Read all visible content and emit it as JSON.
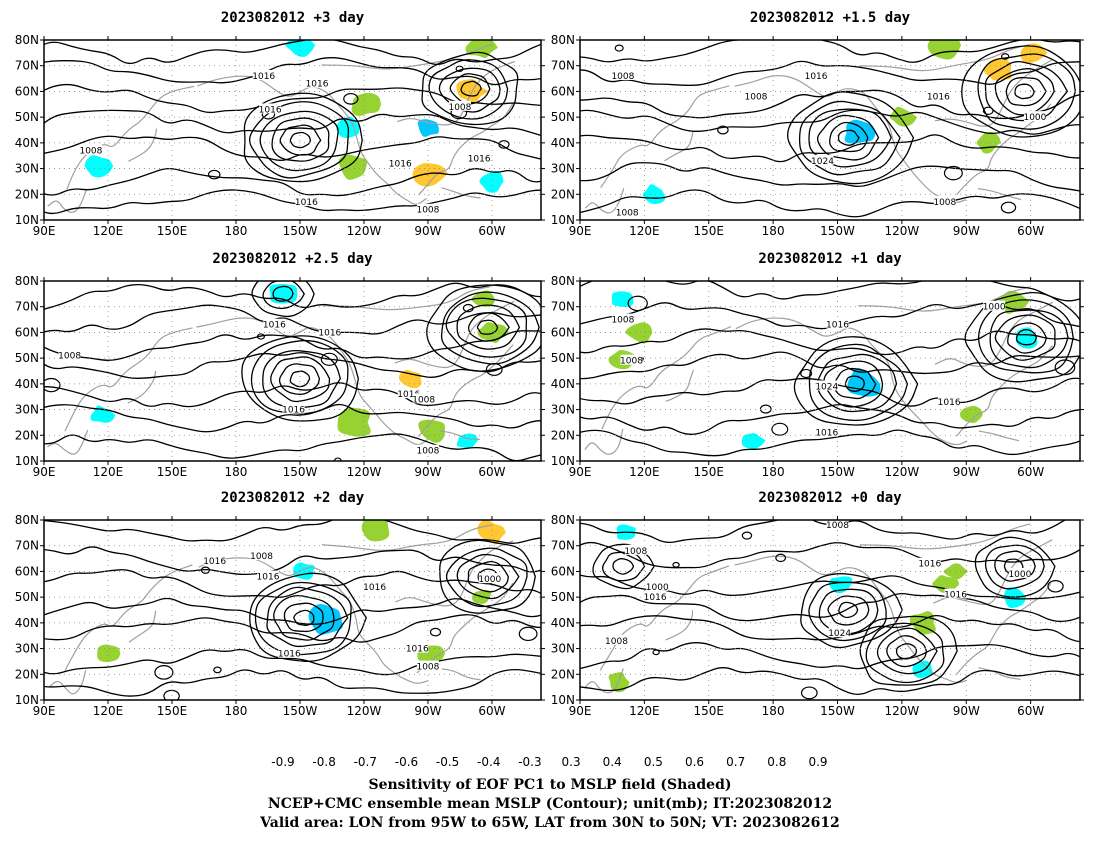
{
  "panels": [
    {
      "title": "2023082012  +3 day",
      "contour_labels": [
        [
          "1016",
          -167,
          66
        ],
        [
          "1016",
          -142,
          63
        ],
        [
          "1016",
          -164,
          53
        ],
        [
          "1016",
          -66,
          34
        ],
        [
          "1016",
          -147,
          17
        ],
        [
          "1016",
          -103,
          32
        ],
        [
          "1008",
          -75,
          54
        ],
        [
          "1008",
          112,
          37
        ],
        [
          "1008",
          -90,
          14
        ]
      ],
      "highs": [
        [
          -150,
          41,
          6
        ]
      ],
      "lows": [
        [
          -70,
          61,
          5
        ]
      ],
      "shade": [
        [
          -150,
          78,
          0.5,
          -0.4
        ],
        [
          -120,
          55,
          0.6,
          0.4
        ],
        [
          -125,
          30,
          0.7,
          0.4
        ],
        [
          -90,
          28,
          0.7,
          0.5
        ],
        [
          -70,
          60,
          0.6,
          0.6
        ],
        [
          -60,
          25,
          0.5,
          -0.4
        ],
        [
          -128,
          46,
          0.4,
          -0.4
        ],
        [
          115,
          31,
          0.5,
          -0.4
        ],
        [
          -65,
          77,
          0.5,
          0.4
        ],
        [
          -90,
          46,
          0.4,
          -0.5
        ]
      ]
    },
    {
      "title": "2023082012  +1.5 day",
      "contour_labels": [
        [
          "1016",
          -160,
          66
        ],
        [
          "1016",
          -103,
          58
        ],
        [
          "1008",
          110,
          66
        ],
        [
          "1008",
          172,
          58
        ],
        [
          "1024",
          -157,
          33
        ],
        [
          "1000",
          -58,
          50
        ],
        [
          "1008",
          -100,
          17
        ],
        [
          "1008",
          112,
          13
        ]
      ],
      "highs": [
        [
          -145,
          42,
          6
        ]
      ],
      "lows": [
        [
          -63,
          60,
          6
        ]
      ],
      "shade": [
        [
          -140,
          44,
          0.7,
          -0.5
        ],
        [
          -100,
          78,
          0.8,
          0.4
        ],
        [
          -75,
          68,
          0.6,
          0.5
        ],
        [
          -120,
          50,
          0.4,
          0.4
        ],
        [
          125,
          20,
          0.4,
          -0.4
        ],
        [
          -80,
          40,
          0.4,
          0.4
        ],
        [
          -60,
          75,
          0.5,
          0.6
        ]
      ]
    },
    {
      "title": "2023082012  +2.5 day",
      "contour_labels": [
        [
          "1016",
          -162,
          63
        ],
        [
          "1016",
          -136,
          60
        ],
        [
          "1016",
          -99,
          36
        ],
        [
          "1016",
          -153,
          30
        ],
        [
          "1008",
          102,
          51
        ],
        [
          "1008",
          -92,
          34
        ],
        [
          "1008",
          -90,
          14
        ]
      ],
      "highs": [
        [
          -150,
          42,
          6
        ]
      ],
      "lows": [
        [
          -62,
          62,
          6
        ],
        [
          -158,
          75,
          3
        ]
      ],
      "shade": [
        [
          -158,
          75,
          0.6,
          -0.4
        ],
        [
          -125,
          25,
          1.0,
          0.4
        ],
        [
          -88,
          22,
          0.6,
          0.4
        ],
        [
          -60,
          60,
          0.5,
          0.4
        ],
        [
          -63,
          73,
          0.4,
          0.4
        ],
        [
          117,
          28,
          0.3,
          -0.4
        ],
        [
          -98,
          42,
          0.3,
          0.5
        ],
        [
          -72,
          18,
          0.3,
          -0.4
        ]
      ]
    },
    {
      "title": "2023082012  +1 day",
      "contour_labels": [
        [
          "1016",
          -150,
          63
        ],
        [
          "1008",
          110,
          65
        ],
        [
          "1008",
          114,
          49
        ],
        [
          "1024",
          -155,
          39
        ],
        [
          "1016",
          -98,
          33
        ],
        [
          "1016",
          -155,
          21
        ],
        [
          "1000",
          -77,
          70
        ]
      ],
      "highs": [
        [
          -142,
          40,
          6
        ]
      ],
      "lows": [
        [
          -62,
          58,
          6
        ]
      ],
      "shade": [
        [
          -138,
          40,
          0.9,
          -0.5
        ],
        [
          -68,
          72,
          0.6,
          0.4
        ],
        [
          118,
          60,
          0.5,
          0.4
        ],
        [
          110,
          50,
          0.4,
          0.4
        ],
        [
          -62,
          58,
          0.4,
          -0.4
        ],
        [
          110,
          73,
          0.3,
          -0.4
        ],
        [
          -88,
          28,
          0.3,
          0.4
        ],
        [
          170,
          18,
          0.3,
          -0.4
        ]
      ]
    },
    {
      "title": "2023082012  +2 day",
      "contour_labels": [
        [
          "1016",
          -190,
          64
        ],
        [
          "1016",
          -165,
          58
        ],
        [
          "1016",
          -115,
          54
        ],
        [
          "1008",
          192,
          66
        ],
        [
          "1016",
          -95,
          30
        ],
        [
          "1016",
          -155,
          28
        ],
        [
          "1000",
          -61,
          57
        ],
        [
          "1008",
          -90,
          23
        ]
      ],
      "highs": [
        [
          -148,
          42,
          6
        ]
      ],
      "lows": [
        [
          -62,
          58,
          5
        ]
      ],
      "shade": [
        [
          -138,
          42,
          0.9,
          -0.5
        ],
        [
          -115,
          77,
          0.7,
          0.4
        ],
        [
          -60,
          75,
          0.6,
          0.6
        ],
        [
          -90,
          28,
          0.5,
          0.4
        ],
        [
          -148,
          60,
          0.3,
          -0.4
        ],
        [
          120,
          28,
          0.3,
          0.4
        ],
        [
          -65,
          50,
          0.3,
          0.4
        ]
      ]
    },
    {
      "title": "2023082012  +0 day",
      "contour_labels": [
        [
          "1008",
          -150,
          78
        ],
        [
          "1008",
          116,
          68
        ],
        [
          "1000",
          126,
          54
        ],
        [
          "1016",
          -107,
          63
        ],
        [
          "1016",
          -95,
          51
        ],
        [
          "1016",
          125,
          50
        ],
        [
          "1024",
          -149,
          36
        ],
        [
          "1008",
          107,
          33
        ],
        [
          "1000",
          -65,
          59
        ]
      ],
      "highs": [
        [
          -145,
          45,
          5
        ]
      ],
      "lows": [
        [
          -118,
          29,
          5
        ],
        [
          -68,
          62,
          4
        ],
        [
          110,
          62,
          3
        ]
      ],
      "shade": [
        [
          -110,
          40,
          0.5,
          0.4
        ],
        [
          -100,
          55,
          0.4,
          0.4
        ],
        [
          -68,
          50,
          0.4,
          -0.4
        ],
        [
          112,
          75,
          0.3,
          -0.4
        ],
        [
          -148,
          55,
          0.3,
          -0.4
        ],
        [
          -110,
          22,
          0.3,
          -0.4
        ],
        [
          108,
          17,
          0.3,
          0.4
        ],
        [
          -95,
          60,
          0.3,
          0.4
        ]
      ]
    }
  ],
  "axes": {
    "lon_ticks": [
      "90E",
      "120E",
      "150E",
      "180",
      "150W",
      "120W",
      "90W",
      "60W"
    ],
    "lon_values": [
      90,
      120,
      150,
      180,
      210,
      240,
      270,
      300
    ],
    "lat_ticks": [
      "10N",
      "20N",
      "30N",
      "40N",
      "50N",
      "60N",
      "70N",
      "80N"
    ],
    "lat_values": [
      10,
      20,
      30,
      40,
      50,
      60,
      70,
      80
    ],
    "lon_range": [
      90,
      323
    ],
    "lat_range": [
      10,
      80
    ]
  },
  "colorbar": {
    "labels": [
      "-0.9",
      "-0.8",
      "-0.7",
      "-0.6",
      "-0.5",
      "-0.4",
      "-0.3",
      "0.3",
      "0.4",
      "0.5",
      "0.6",
      "0.7",
      "0.8",
      "0.9"
    ],
    "colors": [
      "#a000c8",
      "#1e1ec8",
      "#0000ff",
      "#1e50ff",
      "#1e90ff",
      "#00c8ff",
      "#00ffff",
      "#ffffff",
      "#96d232",
      "#ffc832",
      "#ff9600",
      "#ff6400",
      "#ff3200",
      "#ff0000",
      "#ff96c8"
    ]
  },
  "shade_colors": {
    "pos": "#96d232",
    "pos_strong": "#ffc832",
    "neg": "#00ffff",
    "neg_strong": "#00c8ff"
  },
  "contour_color": "#000000",
  "coast_color": "#a0a0a0",
  "caption": {
    "line1": "Sensitivity of EOF PC1 to MSLP field (Shaded)",
    "line2": "NCEP+CMC ensemble mean MSLP (Contour); unit(mb); IT:2023082012",
    "line3": "Valid area: LON from 95W to 65W, LAT from 30N to 50N; VT: 2023082612"
  }
}
